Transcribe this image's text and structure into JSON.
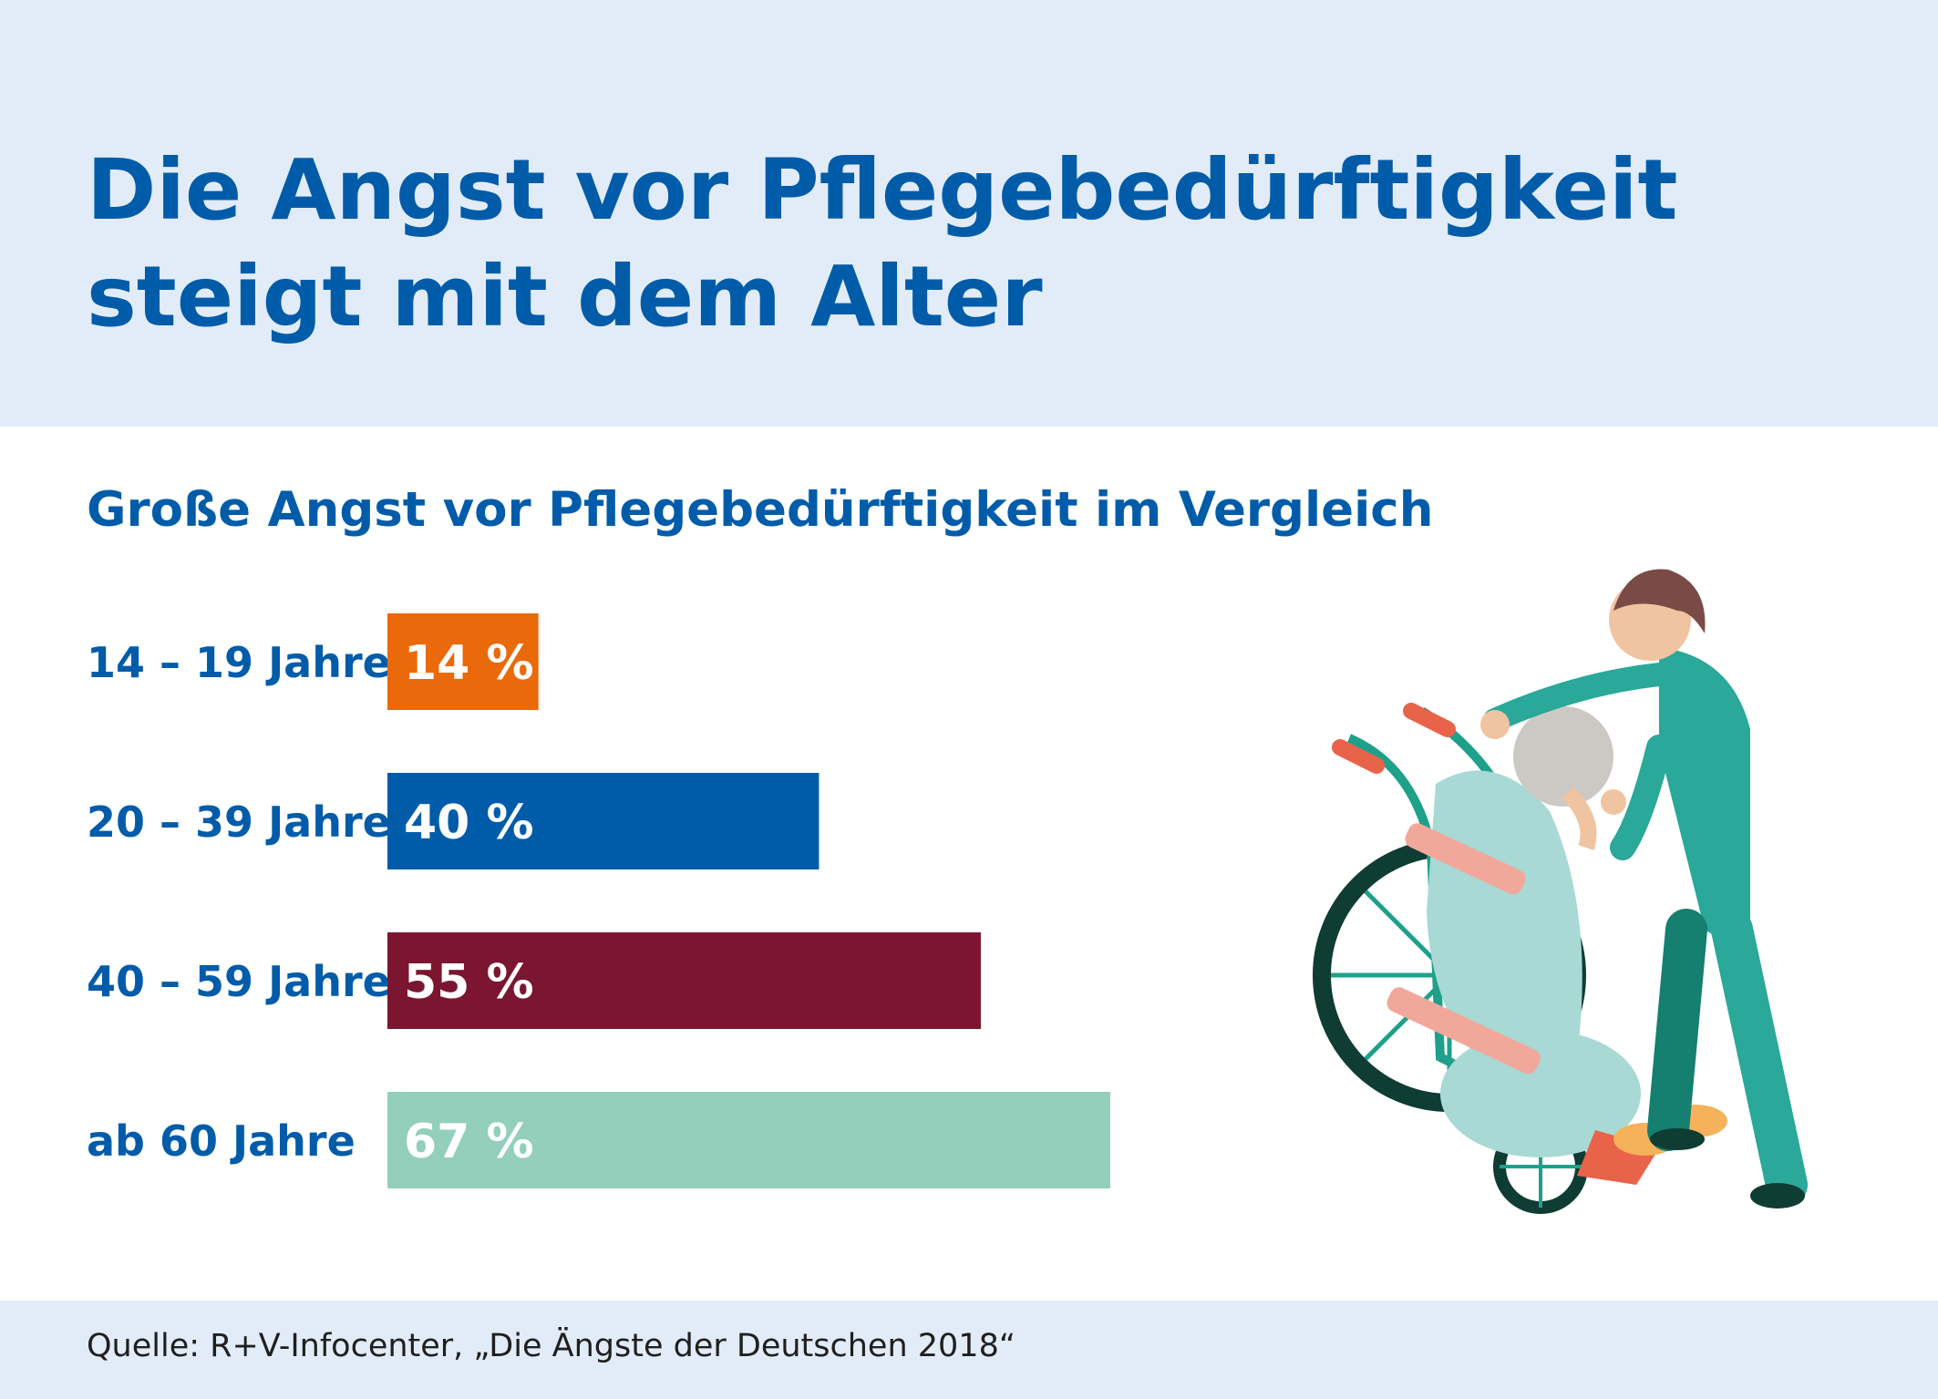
{
  "header": {
    "title": "Die Angst vor Pflegebedürftigkeit steigt mit dem Alter"
  },
  "chart_data": {
    "type": "bar",
    "orientation": "horizontal",
    "title": "Große Angst vor Pflegebedürftigkeit im Vergleich",
    "categories": [
      "14 – 19 Jahre",
      "20 – 39 Jahre",
      "40 – 59 Jahre",
      "ab 60 Jahre"
    ],
    "values": [
      14,
      40,
      55,
      67
    ],
    "value_labels": [
      "14 %",
      "40 %",
      "55 %",
      "67 %"
    ],
    "bar_colors": [
      "#ea690b",
      "#005ca9",
      "#7b1530",
      "#93cfbb"
    ],
    "unit": "%",
    "xlim": [
      0,
      67
    ],
    "grid": false,
    "legend": "none"
  },
  "footer": {
    "source": "Quelle: R+V-Infocenter, „Die Ängste der Deutschen 2018“"
  },
  "illustration": {
    "icon": "caregiver-wheelchair-icon"
  },
  "colors": {
    "title": "#005ca9",
    "band": "#e2ecf8"
  }
}
